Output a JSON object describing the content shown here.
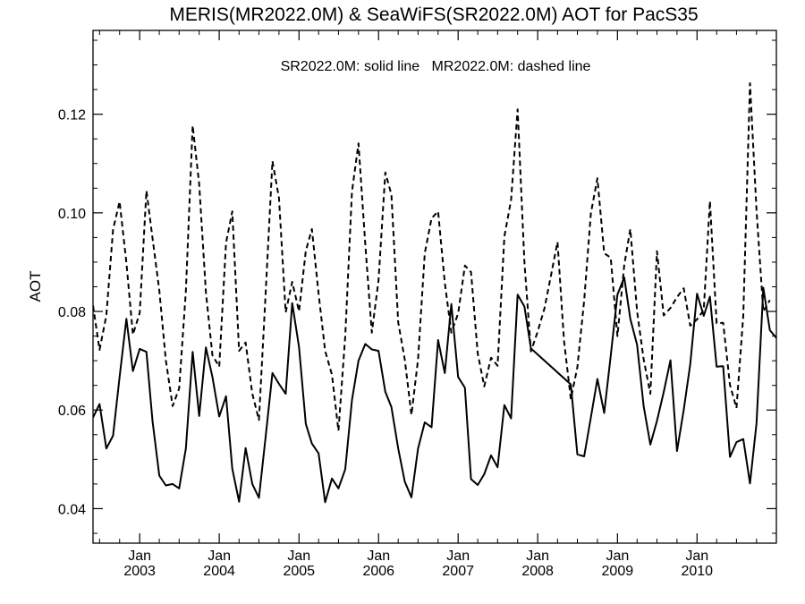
{
  "chart_data": {
    "type": "line",
    "title": "MERIS(MR2022.0M) & SeaWiFS(SR2022.0M)  AOT for PacS35",
    "annotation": "SR2022.0M: solid line   MR2022.0M: dashed line",
    "xlabel": "",
    "ylabel": "AOT",
    "ylim": [
      0.033,
      0.137
    ],
    "xlim": [
      "2002-06-01",
      "2010-12-31"
    ],
    "yticks": [
      0.04,
      0.06,
      0.08,
      0.1,
      0.12
    ],
    "ytick_labels": [
      "0.04",
      "0.06",
      "0.08",
      "0.10",
      "0.12"
    ],
    "xtick_month_label": "Jan",
    "xticks": [
      {
        "date": "2003-01-01",
        "year": "2003"
      },
      {
        "date": "2004-01-01",
        "year": "2004"
      },
      {
        "date": "2005-01-01",
        "year": "2005"
      },
      {
        "date": "2006-01-01",
        "year": "2006"
      },
      {
        "date": "2007-01-01",
        "year": "2007"
      },
      {
        "date": "2008-01-01",
        "year": "2008"
      },
      {
        "date": "2009-01-01",
        "year": "2009"
      },
      {
        "date": "2010-01-01",
        "year": "2010"
      }
    ],
    "grid": false,
    "series": [
      {
        "line_style": "solid",
        "color": "#000000",
        "points": [
          [
            "2002-06-01",
            0.0585
          ],
          [
            "2002-07-01",
            0.0612
          ],
          [
            "2002-08-01",
            0.0522
          ],
          [
            "2002-09-01",
            0.0548
          ],
          [
            "2002-10-01",
            0.0667
          ],
          [
            "2002-11-01",
            0.0785
          ],
          [
            "2002-12-01",
            0.0679
          ],
          [
            "2003-01-01",
            0.0724
          ],
          [
            "2003-02-01",
            0.0718
          ],
          [
            "2003-03-01",
            0.0578
          ],
          [
            "2003-04-01",
            0.0467
          ],
          [
            "2003-05-01",
            0.0447
          ],
          [
            "2003-06-01",
            0.045
          ],
          [
            "2003-07-01",
            0.0441
          ],
          [
            "2003-08-01",
            0.0522
          ],
          [
            "2003-09-01",
            0.0718
          ],
          [
            "2003-10-01",
            0.0588
          ],
          [
            "2003-11-01",
            0.0727
          ],
          [
            "2003-12-01",
            0.0667
          ],
          [
            "2004-01-01",
            0.0587
          ],
          [
            "2004-02-01",
            0.0628
          ],
          [
            "2004-03-01",
            0.0481
          ],
          [
            "2004-04-01",
            0.0414
          ],
          [
            "2004-05-01",
            0.0523
          ],
          [
            "2004-06-01",
            0.045
          ],
          [
            "2004-07-01",
            0.0422
          ],
          [
            "2004-08-01",
            0.0546
          ],
          [
            "2004-09-01",
            0.0675
          ],
          [
            "2004-10-01",
            0.0653
          ],
          [
            "2004-11-01",
            0.0633
          ],
          [
            "2004-12-01",
            0.0817
          ],
          [
            "2005-01-01",
            0.0728
          ],
          [
            "2005-02-01",
            0.0572
          ],
          [
            "2005-03-01",
            0.0532
          ],
          [
            "2005-04-01",
            0.0512
          ],
          [
            "2005-05-01",
            0.0413
          ],
          [
            "2005-06-01",
            0.0461
          ],
          [
            "2005-07-01",
            0.0441
          ],
          [
            "2005-08-01",
            0.048
          ],
          [
            "2005-09-01",
            0.062
          ],
          [
            "2005-10-01",
            0.07
          ],
          [
            "2005-11-01",
            0.0734
          ],
          [
            "2005-12-01",
            0.0723
          ],
          [
            "2006-01-01",
            0.072
          ],
          [
            "2006-02-01",
            0.0637
          ],
          [
            "2006-03-01",
            0.0606
          ],
          [
            "2006-04-01",
            0.0522
          ],
          [
            "2006-05-01",
            0.0455
          ],
          [
            "2006-06-01",
            0.0423
          ],
          [
            "2006-07-01",
            0.0522
          ],
          [
            "2006-08-01",
            0.0575
          ],
          [
            "2006-09-01",
            0.0565
          ],
          [
            "2006-10-01",
            0.0742
          ],
          [
            "2006-11-01",
            0.0675
          ],
          [
            "2006-12-01",
            0.0815
          ],
          [
            "2007-01-01",
            0.0667
          ],
          [
            "2007-02-01",
            0.0645
          ],
          [
            "2007-03-01",
            0.046
          ],
          [
            "2007-04-01",
            0.0448
          ],
          [
            "2007-05-01",
            0.047
          ],
          [
            "2007-06-01",
            0.0508
          ],
          [
            "2007-07-01",
            0.0484
          ],
          [
            "2007-08-01",
            0.061
          ],
          [
            "2007-09-01",
            0.0583
          ],
          [
            "2007-10-01",
            0.0834
          ],
          [
            "2007-11-01",
            0.081
          ],
          [
            "2007-12-01",
            0.0725
          ],
          [
            "2008-06-01",
            0.0652
          ],
          [
            "2008-07-01",
            0.051
          ],
          [
            "2008-08-01",
            0.0506
          ],
          [
            "2008-09-01",
            0.0585
          ],
          [
            "2008-10-01",
            0.0663
          ],
          [
            "2008-11-01",
            0.0594
          ],
          [
            "2008-12-01",
            0.071
          ],
          [
            "2009-01-01",
            0.0834
          ],
          [
            "2009-02-01",
            0.0869
          ],
          [
            "2009-03-01",
            0.0785
          ],
          [
            "2009-04-01",
            0.0732
          ],
          [
            "2009-05-01",
            0.0608
          ],
          [
            "2009-06-01",
            0.053
          ],
          [
            "2009-07-01",
            0.0578
          ],
          [
            "2009-08-01",
            0.0636
          ],
          [
            "2009-09-01",
            0.0701
          ],
          [
            "2009-10-01",
            0.0517
          ],
          [
            "2009-11-01",
            0.06
          ],
          [
            "2009-12-01",
            0.0693
          ],
          [
            "2010-01-01",
            0.0836
          ],
          [
            "2010-02-01",
            0.0791
          ],
          [
            "2010-03-01",
            0.083
          ],
          [
            "2010-04-01",
            0.0688
          ],
          [
            "2010-05-01",
            0.0689
          ],
          [
            "2010-06-01",
            0.0505
          ],
          [
            "2010-07-01",
            0.0535
          ],
          [
            "2010-08-01",
            0.0541
          ],
          [
            "2010-09-01",
            0.0451
          ],
          [
            "2010-10-01",
            0.0573
          ],
          [
            "2010-11-01",
            0.0848
          ],
          [
            "2010-12-01",
            0.0762
          ],
          [
            "2011-01-01",
            0.0746
          ],
          [
            "2011-02-01",
            0.0734
          ]
        ]
      },
      {
        "line_style": "dashed",
        "color": "#000000",
        "points": [
          [
            "2002-06-01",
            0.0812
          ],
          [
            "2002-07-01",
            0.0722
          ],
          [
            "2002-08-01",
            0.0792
          ],
          [
            "2002-09-01",
            0.0966
          ],
          [
            "2002-10-01",
            0.1023
          ],
          [
            "2002-11-01",
            0.0899
          ],
          [
            "2002-12-01",
            0.0753
          ],
          [
            "2003-01-01",
            0.0797
          ],
          [
            "2003-02-01",
            0.1045
          ],
          [
            "2003-03-01",
            0.0949
          ],
          [
            "2003-04-01",
            0.0843
          ],
          [
            "2003-05-01",
            0.0701
          ],
          [
            "2003-06-01",
            0.0608
          ],
          [
            "2003-07-01",
            0.0644
          ],
          [
            "2003-08-01",
            0.0841
          ],
          [
            "2003-09-01",
            0.1177
          ],
          [
            "2003-10-01",
            0.1058
          ],
          [
            "2003-11-01",
            0.0839
          ],
          [
            "2003-12-01",
            0.0711
          ],
          [
            "2004-01-01",
            0.0688
          ],
          [
            "2004-02-01",
            0.0939
          ],
          [
            "2004-03-01",
            0.1003
          ],
          [
            "2004-04-01",
            0.072
          ],
          [
            "2004-05-01",
            0.0737
          ],
          [
            "2004-06-01",
            0.0633
          ],
          [
            "2004-07-01",
            0.058
          ],
          [
            "2004-08-01",
            0.0837
          ],
          [
            "2004-09-01",
            0.1105
          ],
          [
            "2004-10-01",
            0.103
          ],
          [
            "2004-11-01",
            0.0798
          ],
          [
            "2004-12-01",
            0.086
          ],
          [
            "2005-01-01",
            0.08
          ],
          [
            "2005-02-01",
            0.0923
          ],
          [
            "2005-03-01",
            0.0967
          ],
          [
            "2005-04-01",
            0.0836
          ],
          [
            "2005-05-01",
            0.072
          ],
          [
            "2005-06-01",
            0.0672
          ],
          [
            "2005-07-01",
            0.0558
          ],
          [
            "2005-08-01",
            0.075
          ],
          [
            "2005-09-01",
            0.1043
          ],
          [
            "2005-10-01",
            0.1141
          ],
          [
            "2005-11-01",
            0.0936
          ],
          [
            "2005-12-01",
            0.0757
          ],
          [
            "2006-01-01",
            0.0863
          ],
          [
            "2006-02-01",
            0.1082
          ],
          [
            "2006-03-01",
            0.1037
          ],
          [
            "2006-04-01",
            0.0778
          ],
          [
            "2006-05-01",
            0.0703
          ],
          [
            "2006-06-01",
            0.059
          ],
          [
            "2006-07-01",
            0.0703
          ],
          [
            "2006-08-01",
            0.0918
          ],
          [
            "2006-09-01",
            0.0989
          ],
          [
            "2006-10-01",
            0.1003
          ],
          [
            "2006-11-01",
            0.0858
          ],
          [
            "2006-12-01",
            0.0757
          ],
          [
            "2007-01-01",
            0.0796
          ],
          [
            "2007-02-01",
            0.0893
          ],
          [
            "2007-03-01",
            0.088
          ],
          [
            "2007-04-01",
            0.0715
          ],
          [
            "2007-05-01",
            0.0648
          ],
          [
            "2007-06-01",
            0.0706
          ],
          [
            "2007-07-01",
            0.069
          ],
          [
            "2007-08-01",
            0.0952
          ],
          [
            "2007-09-01",
            0.1026
          ],
          [
            "2007-10-01",
            0.121
          ],
          [
            "2007-11-01",
            0.09
          ],
          [
            "2007-12-01",
            0.0719
          ],
          [
            "2008-01-01",
            0.0759
          ],
          [
            "2008-02-01",
            0.0806
          ],
          [
            "2008-03-01",
            0.0871
          ],
          [
            "2008-04-01",
            0.0941
          ],
          [
            "2008-05-01",
            0.074
          ],
          [
            "2008-06-01",
            0.0622
          ],
          [
            "2008-07-01",
            0.0687
          ],
          [
            "2008-08-01",
            0.0822
          ],
          [
            "2008-09-01",
            0.0999
          ],
          [
            "2008-10-01",
            0.107
          ],
          [
            "2008-11-01",
            0.0918
          ],
          [
            "2008-12-01",
            0.0909
          ],
          [
            "2009-01-01",
            0.075
          ],
          [
            "2009-02-01",
            0.0894
          ],
          [
            "2009-03-01",
            0.0967
          ],
          [
            "2009-04-01",
            0.08
          ],
          [
            "2009-05-01",
            0.0703
          ],
          [
            "2009-06-01",
            0.0633
          ],
          [
            "2009-07-01",
            0.0922
          ],
          [
            "2009-08-01",
            0.0792
          ],
          [
            "2009-09-01",
            0.0807
          ],
          [
            "2009-10-01",
            0.0829
          ],
          [
            "2009-11-01",
            0.0847
          ],
          [
            "2009-12-01",
            0.0771
          ],
          [
            "2010-01-01",
            0.0784
          ],
          [
            "2010-02-01",
            0.0803
          ],
          [
            "2010-03-01",
            0.1024
          ],
          [
            "2010-04-01",
            0.0776
          ],
          [
            "2010-05-01",
            0.0777
          ],
          [
            "2010-06-01",
            0.0651
          ],
          [
            "2010-07-01",
            0.0604
          ],
          [
            "2010-08-01",
            0.0792
          ],
          [
            "2010-09-01",
            0.1263
          ],
          [
            "2010-10-01",
            0.1005
          ],
          [
            "2010-11-01",
            0.08
          ],
          [
            "2010-12-01",
            0.0823
          ]
        ]
      }
    ]
  }
}
